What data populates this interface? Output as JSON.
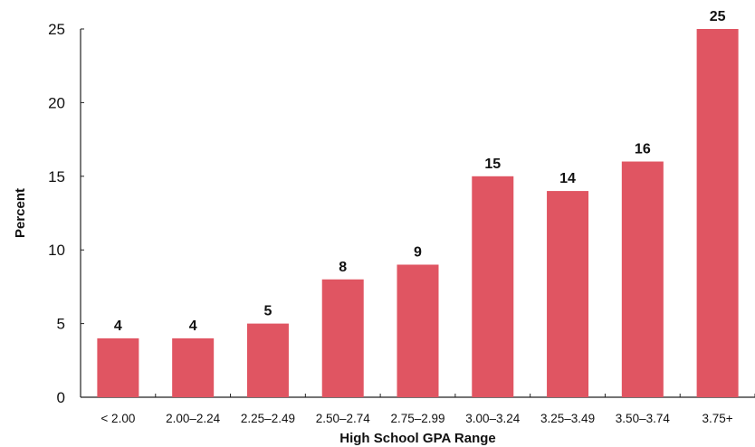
{
  "chart_data": {
    "type": "bar",
    "title": "",
    "xlabel": "High School GPA Range",
    "ylabel": "Percent",
    "categories": [
      "< 2.00",
      "2.00–2.24",
      "2.25–2.49",
      "2.50–2.74",
      "2.75–2.99",
      "3.00–3.24",
      "3.25–3.49",
      "3.50–3.74",
      "3.75+"
    ],
    "values": [
      4,
      4,
      5,
      8,
      9,
      15,
      14,
      16,
      25
    ],
    "value_labels": [
      "4",
      "4",
      "5",
      "8",
      "9",
      "15",
      "14",
      "16",
      "25"
    ],
    "ylim": [
      0,
      25
    ],
    "yticks": [
      "0",
      "5",
      "10",
      "15",
      "20",
      "25"
    ],
    "grid": false,
    "bar_color": "#e05562"
  }
}
